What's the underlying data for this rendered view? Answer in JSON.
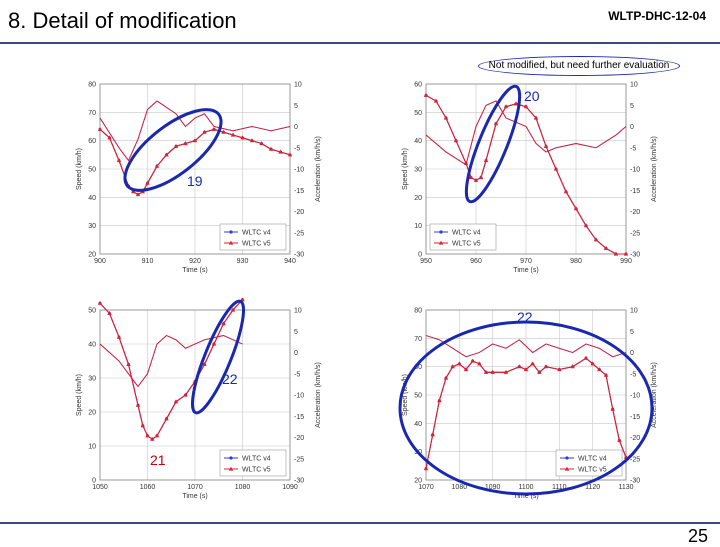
{
  "slide": {
    "title": "8. Detail of modification",
    "doc_id": "WLTP-DHC-12-04",
    "page_number": "25",
    "note": "Not modified, but need further evaluation"
  },
  "annotations": [
    "19",
    "20",
    "22",
    "21",
    "22"
  ],
  "colors": {
    "v4": "#2b3de0",
    "v5": "#e0202a",
    "ellipse": "#1a28b0",
    "grid": "#c8c8c8"
  },
  "chart_data": [
    {
      "type": "line",
      "xlabel": "Time (s)",
      "ylabel": "Speed (km/h)",
      "y2label": "Acceleration (km/h/s)",
      "xlim": [
        900,
        940
      ],
      "ylim": [
        20,
        80
      ],
      "y2lim": [
        -30,
        10
      ],
      "xticks": [
        "900",
        "910",
        "920",
        "930",
        "940"
      ],
      "yticks": [
        "20",
        "30",
        "40",
        "50",
        "60",
        "70",
        "80"
      ],
      "y2ticks": [
        "-30",
        "-25",
        "-20",
        "-15",
        "-10",
        "-5",
        "0",
        "5",
        "10"
      ],
      "legend": {
        "position": "bottom-right",
        "entries": [
          "WLTC v4",
          "WLTC v5"
        ]
      },
      "series": [
        {
          "name": "WLTC v4 speed",
          "axis": "left",
          "marker": "circle",
          "x": [
            900,
            902,
            904,
            906,
            907,
            908,
            909,
            910,
            912,
            914,
            916,
            918,
            920,
            922,
            924,
            926,
            928,
            930,
            932,
            934,
            936,
            938,
            940
          ],
          "y": [
            64,
            61,
            53,
            44,
            42,
            41,
            42,
            45,
            51,
            55,
            58,
            59,
            60,
            63,
            64,
            63,
            62,
            61,
            60,
            59,
            57,
            56,
            55
          ]
        },
        {
          "name": "WLTC v5 speed",
          "axis": "left",
          "marker": "triangle",
          "x": [
            900,
            902,
            904,
            906,
            907,
            908,
            909,
            910,
            912,
            914,
            916,
            918,
            920,
            922,
            924,
            926,
            928,
            930,
            932,
            934,
            936,
            938,
            940
          ],
          "y": [
            64,
            61,
            53,
            44,
            42,
            41,
            42,
            45,
            51,
            55,
            58,
            59,
            60,
            63,
            64,
            63,
            62,
            61,
            60,
            59,
            57,
            56,
            55
          ]
        },
        {
          "name": "WLTC v4 accel",
          "axis": "right",
          "marker": "none",
          "x": [
            900,
            904,
            906,
            908,
            910,
            912,
            916,
            918,
            920,
            922,
            924,
            928,
            932,
            936,
            940
          ],
          "y": [
            2,
            -5,
            -8,
            -3,
            4,
            6,
            3,
            0,
            2,
            3,
            0,
            -1,
            0,
            -1,
            0
          ]
        },
        {
          "name": "WLTC v5 accel",
          "axis": "right",
          "marker": "none",
          "x": [
            900,
            904,
            906,
            908,
            910,
            912,
            916,
            918,
            920,
            922,
            924,
            928,
            932,
            936,
            940
          ],
          "y": [
            2,
            -5,
            -8,
            -3,
            4,
            6,
            3,
            0,
            2,
            3,
            0,
            -1,
            0,
            -1,
            0
          ]
        }
      ]
    },
    {
      "type": "line",
      "xlabel": "Time (s)",
      "ylabel": "Speed (km/h)",
      "y2label": "Acceleration (km/h/s)",
      "xlim": [
        950,
        990
      ],
      "ylim": [
        0,
        60
      ],
      "y2lim": [
        -30,
        10
      ],
      "xticks": [
        "950",
        "960",
        "970",
        "980",
        "990"
      ],
      "yticks": [
        "0",
        "10",
        "20",
        "30",
        "40",
        "50",
        "60"
      ],
      "y2ticks": [
        "-30",
        "-25",
        "-20",
        "-15",
        "-10",
        "-5",
        "0",
        "5",
        "10"
      ],
      "legend": {
        "position": "bottom-left",
        "entries": [
          "WLTC v4",
          "WLTC v5"
        ]
      },
      "series": [
        {
          "name": "WLTC v4 speed",
          "axis": "left",
          "marker": "circle",
          "x": [
            950,
            952,
            954,
            956,
            958,
            959,
            960,
            961,
            962,
            964,
            966,
            968,
            970,
            972,
            974,
            976,
            978,
            980,
            982,
            984,
            986,
            988,
            990
          ],
          "y": [
            56,
            54,
            48,
            40,
            32,
            27,
            26,
            27,
            33,
            46,
            52,
            53,
            52,
            48,
            38,
            30,
            22,
            16,
            10,
            5,
            2,
            0,
            0
          ]
        },
        {
          "name": "WLTC v5 speed",
          "axis": "left",
          "marker": "triangle",
          "x": [
            950,
            952,
            954,
            956,
            958,
            959,
            960,
            961,
            962,
            964,
            966,
            968,
            970,
            972,
            974,
            976,
            978,
            980,
            982,
            984,
            986,
            988,
            990
          ],
          "y": [
            56,
            54,
            48,
            40,
            32,
            27,
            26,
            27,
            33,
            46,
            52,
            53,
            52,
            48,
            38,
            30,
            22,
            16,
            10,
            5,
            2,
            0,
            0
          ]
        },
        {
          "name": "WLTC v4 accel",
          "axis": "right",
          "marker": "none",
          "x": [
            950,
            954,
            958,
            960,
            962,
            964,
            966,
            970,
            972,
            974,
            976,
            980,
            984,
            988,
            990
          ],
          "y": [
            -2,
            -6,
            -9,
            0,
            5,
            6,
            2,
            0,
            -4,
            -6,
            -5,
            -4,
            -5,
            -2,
            0
          ]
        },
        {
          "name": "WLTC v5 accel",
          "axis": "right",
          "marker": "none",
          "x": [
            950,
            954,
            958,
            960,
            962,
            964,
            966,
            970,
            972,
            974,
            976,
            980,
            984,
            988,
            990
          ],
          "y": [
            -2,
            -6,
            -9,
            0,
            5,
            6,
            2,
            0,
            -4,
            -6,
            -5,
            -4,
            -5,
            -2,
            0
          ]
        }
      ]
    },
    {
      "type": "line",
      "xlabel": "Time (s)",
      "ylabel": "Speed (km/h)",
      "y2label": "Acceleration (km/h/s)",
      "xlim": [
        1050,
        1090
      ],
      "ylim": [
        0,
        50
      ],
      "y2lim": [
        -30,
        10
      ],
      "xticks": [
        "1050",
        "1060",
        "1070",
        "1080",
        "1090"
      ],
      "yticks": [
        "0",
        "10",
        "20",
        "30",
        "40",
        "50"
      ],
      "y2ticks": [
        "-30",
        "-25",
        "-20",
        "-15",
        "-10",
        "-5",
        "0",
        "5",
        "10"
      ],
      "legend": {
        "position": "bottom-right",
        "entries": [
          "WLTC v4",
          "WLTC v5"
        ]
      },
      "series": [
        {
          "name": "WLTC v4 speed",
          "axis": "left",
          "marker": "circle",
          "x": [
            1050,
            1052,
            1054,
            1056,
            1058,
            1059,
            1060,
            1061,
            1062,
            1064,
            1066,
            1068,
            1070,
            1072,
            1074,
            1076,
            1078,
            1080
          ],
          "y": [
            52,
            49,
            42,
            34,
            22,
            16,
            13,
            12,
            13,
            18,
            23,
            25,
            29,
            34,
            40,
            46,
            50,
            53
          ]
        },
        {
          "name": "WLTC v5 speed",
          "axis": "left",
          "marker": "triangle",
          "x": [
            1050,
            1052,
            1054,
            1056,
            1058,
            1059,
            1060,
            1061,
            1062,
            1064,
            1066,
            1068,
            1070,
            1072,
            1074,
            1076,
            1078,
            1080
          ],
          "y": [
            52,
            49,
            42,
            34,
            22,
            16,
            13,
            12,
            13,
            18,
            23,
            25,
            29,
            34,
            40,
            46,
            50,
            53
          ]
        },
        {
          "name": "WLTC v4 accel",
          "axis": "right",
          "marker": "none",
          "x": [
            1050,
            1054,
            1058,
            1060,
            1062,
            1064,
            1066,
            1068,
            1070,
            1072,
            1076,
            1080
          ],
          "y": [
            2,
            -2,
            -8,
            -5,
            2,
            4,
            3,
            1,
            2,
            3,
            4,
            2
          ]
        },
        {
          "name": "WLTC v5 accel",
          "axis": "right",
          "marker": "none",
          "x": [
            1050,
            1054,
            1058,
            1060,
            1062,
            1064,
            1066,
            1068,
            1070,
            1072,
            1076,
            1080
          ],
          "y": [
            2,
            -2,
            -8,
            -5,
            2,
            4,
            3,
            1,
            2,
            3,
            4,
            2
          ]
        }
      ]
    },
    {
      "type": "line",
      "xlabel": "Time (s)",
      "ylabel": "Speed (km/h)",
      "y2label": "Acceleration (km/h/s)",
      "xlim": [
        1070,
        1130
      ],
      "ylim": [
        20,
        80
      ],
      "y2lim": [
        -30,
        10
      ],
      "xticks": [
        "1070",
        "1080",
        "1090",
        "1100",
        "1110",
        "1120",
        "1130"
      ],
      "yticks": [
        "20",
        "30",
        "40",
        "50",
        "60",
        "70",
        "80"
      ],
      "y2ticks": [
        "-30",
        "-25",
        "-20",
        "-15",
        "-10",
        "-5",
        "0",
        "5",
        "10"
      ],
      "legend": {
        "position": "bottom-right",
        "entries": [
          "WLTC v4",
          "WLTC v5"
        ]
      },
      "series": [
        {
          "name": "WLTC v4 speed",
          "axis": "left",
          "marker": "circle",
          "x": [
            1070,
            1072,
            1074,
            1076,
            1078,
            1080,
            1082,
            1084,
            1086,
            1088,
            1090,
            1094,
            1098,
            1100,
            1102,
            1104,
            1106,
            1110,
            1114,
            1118,
            1120,
            1122,
            1124,
            1126,
            1128,
            1130
          ],
          "y": [
            24,
            36,
            48,
            56,
            60,
            61,
            59,
            62,
            61,
            58,
            58,
            58,
            60,
            59,
            61,
            58,
            60,
            59,
            60,
            63,
            61,
            59,
            57,
            45,
            34,
            28
          ]
        },
        {
          "name": "WLTC v5 speed",
          "axis": "left",
          "marker": "triangle",
          "x": [
            1070,
            1072,
            1074,
            1076,
            1078,
            1080,
            1082,
            1084,
            1086,
            1088,
            1090,
            1094,
            1098,
            1100,
            1102,
            1104,
            1106,
            1110,
            1114,
            1118,
            1120,
            1122,
            1124,
            1126,
            1128,
            1130
          ],
          "y": [
            24,
            36,
            48,
            56,
            60,
            61,
            59,
            62,
            61,
            58,
            58,
            58,
            60,
            59,
            61,
            58,
            60,
            59,
            60,
            63,
            61,
            59,
            57,
            45,
            34,
            28
          ]
        },
        {
          "name": "WLTC v4 accel",
          "axis": "right",
          "marker": "none",
          "x": [
            1070,
            1074,
            1078,
            1082,
            1086,
            1090,
            1094,
            1098,
            1102,
            1106,
            1110,
            1114,
            1118,
            1122,
            1126,
            1130
          ],
          "y": [
            4,
            3,
            1,
            -1,
            0,
            2,
            1,
            3,
            0,
            2,
            1,
            0,
            2,
            1,
            -1,
            0
          ]
        },
        {
          "name": "WLTC v5 accel",
          "axis": "right",
          "marker": "none",
          "x": [
            1070,
            1074,
            1078,
            1082,
            1086,
            1090,
            1094,
            1098,
            1102,
            1106,
            1110,
            1114,
            1118,
            1122,
            1126,
            1130
          ],
          "y": [
            4,
            3,
            1,
            -1,
            0,
            2,
            1,
            3,
            0,
            2,
            1,
            0,
            2,
            1,
            -1,
            0
          ]
        }
      ]
    }
  ]
}
